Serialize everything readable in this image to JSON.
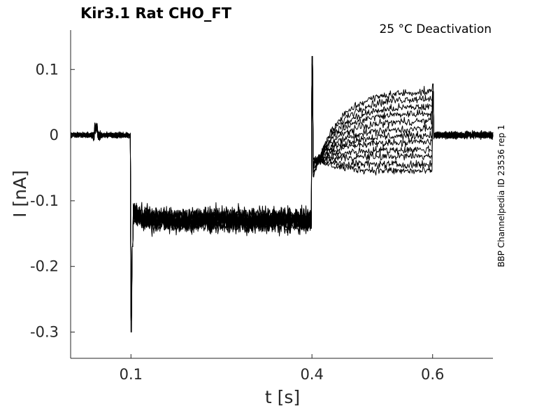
{
  "chart_data": {
    "type": "line",
    "title": "Kir3.1  Rat  CHO_FT",
    "annotation": "25 °C  Deactivation",
    "side_label": "BBP Channelpedia ID 23536 rep 1",
    "xlabel": "t [s]",
    "ylabel": "I [nA]",
    "xlim": [
      0.0,
      0.7
    ],
    "ylim": [
      -0.34,
      0.16
    ],
    "xticks": [
      0.1,
      0.4,
      0.6
    ],
    "xtick_labels": [
      "0.1",
      "0.4",
      "0.6"
    ],
    "yticks": [
      0.1,
      0,
      -0.1,
      -0.2,
      -0.3
    ],
    "ytick_labels": [
      "0.1",
      "0",
      "-0.1",
      "-0.2",
      "-0.3"
    ],
    "grid": false,
    "legend": "none",
    "protocol": {
      "hold_end": 0.1,
      "prepulse_end": 0.4,
      "test_end": 0.6,
      "holding_current": 0.0,
      "prepulse_current": -0.13,
      "transient_peak_at_0_1": -0.3,
      "transient_peak_at_0_4": 0.12,
      "transient_peak_at_0_6": 0.078
    },
    "series": [
      {
        "test_start": -0.072,
        "test_end": 0.067
      },
      {
        "test_start": -0.068,
        "test_end": 0.057
      },
      {
        "test_start": -0.062,
        "test_end": 0.044
      },
      {
        "test_start": -0.058,
        "test_end": 0.034
      },
      {
        "test_start": -0.054,
        "test_end": 0.022
      },
      {
        "test_start": -0.05,
        "test_end": 0.01
      },
      {
        "test_start": -0.047,
        "test_end": 0.0
      },
      {
        "test_start": -0.045,
        "test_end": -0.01
      },
      {
        "test_start": -0.042,
        "test_end": -0.022
      },
      {
        "test_start": -0.04,
        "test_end": -0.032
      },
      {
        "test_start": -0.038,
        "test_end": -0.045
      },
      {
        "test_start": -0.035,
        "test_end": -0.055
      }
    ]
  }
}
